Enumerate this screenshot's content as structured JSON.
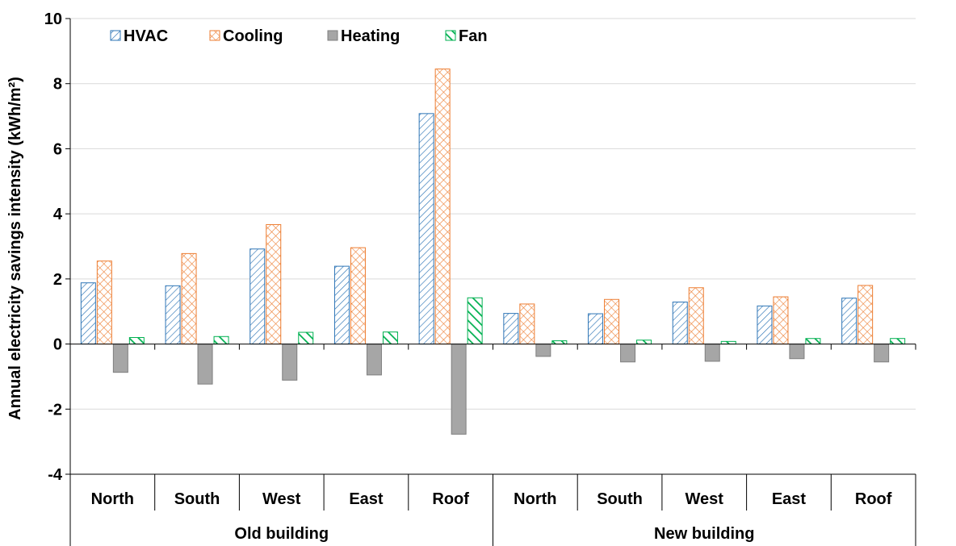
{
  "chart_data": {
    "type": "bar",
    "title": "",
    "ylabel": "Annual electricity savings intensity (kWh/m²)",
    "xlabel": "",
    "ylim": [
      -4,
      10
    ],
    "yticks": [
      -4,
      -2,
      0,
      2,
      4,
      6,
      8,
      10
    ],
    "grid": true,
    "legend_position": "top-left",
    "groups": [
      {
        "label": "Old building",
        "categories": [
          "North",
          "South",
          "West",
          "East",
          "Roof"
        ]
      },
      {
        "label": "New building",
        "categories": [
          "North",
          "South",
          "West",
          "East",
          "Roof"
        ]
      }
    ],
    "series": [
      {
        "name": "HVAC",
        "color": "#2E75B6",
        "pattern": "diagonal-hatch",
        "values": [
          1.88,
          1.79,
          2.92,
          2.39,
          7.08,
          0.94,
          0.93,
          1.29,
          1.17,
          1.41
        ]
      },
      {
        "name": "Cooling",
        "color": "#ED7D31",
        "pattern": "cross-hatch",
        "values": [
          2.55,
          2.78,
          3.67,
          2.96,
          8.45,
          1.23,
          1.37,
          1.73,
          1.45,
          1.8
        ]
      },
      {
        "name": "Heating",
        "color": "#A6A6A6",
        "pattern": "solid",
        "values": [
          -0.87,
          -1.23,
          -1.11,
          -0.95,
          -2.77,
          -0.38,
          -0.55,
          -0.53,
          -0.45,
          -0.55
        ]
      },
      {
        "name": "Fan",
        "color": "#00B050",
        "pattern": "reverse-diagonal",
        "values": [
          0.2,
          0.23,
          0.36,
          0.37,
          1.42,
          0.1,
          0.12,
          0.08,
          0.17,
          0.17
        ]
      }
    ]
  }
}
